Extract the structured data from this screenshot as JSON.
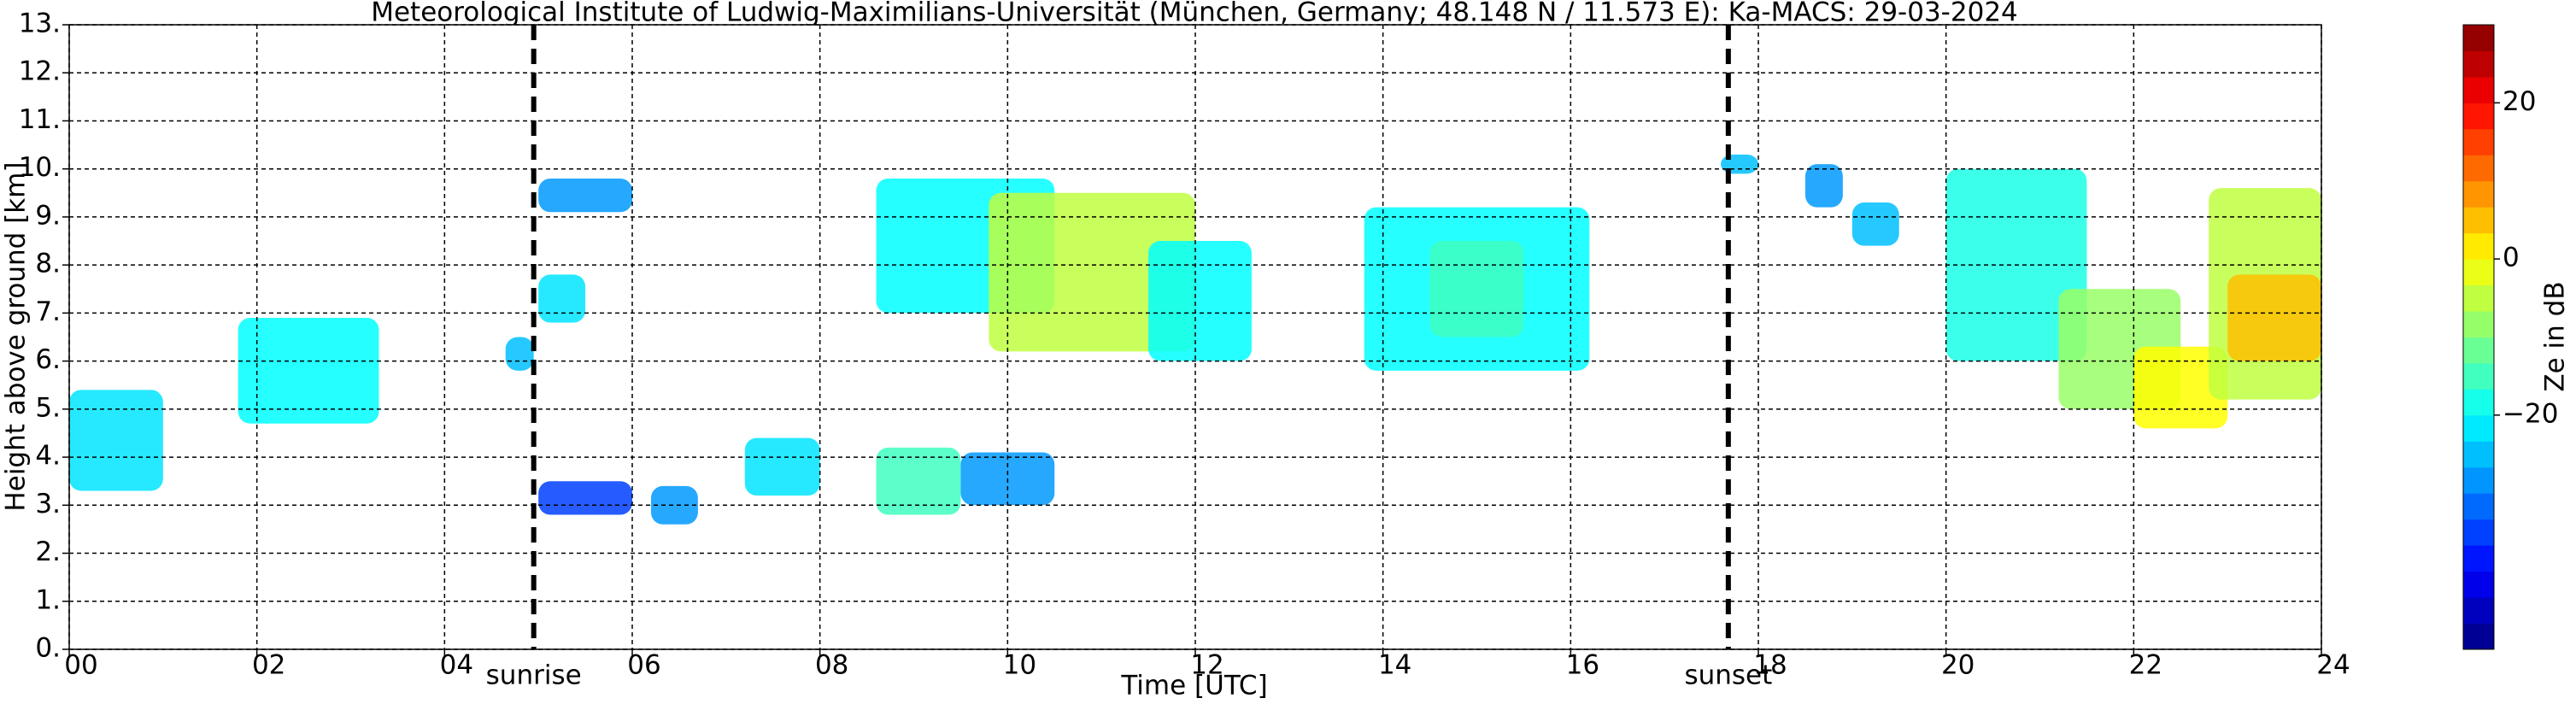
{
  "chart_data": {
    "type": "time-height",
    "title": "Meteorological Institute of Ludwig-Maximilians-Universität (München, Germany; 48.148 N / 11.573 E):    Ka-MACS: 29-03-2024",
    "xlabel": "Time [UTC]",
    "ylabel": "Height above ground [km]",
    "xlim": [
      0,
      24
    ],
    "xticks": [
      {
        "value": 0,
        "label": "00"
      },
      {
        "value": 2,
        "label": "02"
      },
      {
        "value": 4,
        "label": "04"
      },
      {
        "value": 6,
        "label": "06"
      },
      {
        "value": 8,
        "label": "08"
      },
      {
        "value": 10,
        "label": "10"
      },
      {
        "value": 12,
        "label": "12"
      },
      {
        "value": 14,
        "label": "14"
      },
      {
        "value": 16,
        "label": "16"
      },
      {
        "value": 18,
        "label": "18"
      },
      {
        "value": 20,
        "label": "20"
      },
      {
        "value": 22,
        "label": "22"
      },
      {
        "value": 24,
        "label": "24"
      }
    ],
    "ylim": [
      0,
      13
    ],
    "yticks": [
      {
        "value": 0,
        "label": "0."
      },
      {
        "value": 1,
        "label": "1."
      },
      {
        "value": 2,
        "label": "2."
      },
      {
        "value": 3,
        "label": "3."
      },
      {
        "value": 4,
        "label": "4."
      },
      {
        "value": 5,
        "label": "5."
      },
      {
        "value": 6,
        "label": "6."
      },
      {
        "value": 7,
        "label": "7."
      },
      {
        "value": 8,
        "label": "8."
      },
      {
        "value": 9,
        "label": "9."
      },
      {
        "value": 10,
        "label": "10."
      },
      {
        "value": 11,
        "label": "11."
      },
      {
        "value": 12,
        "label": "12."
      },
      {
        "value": 13,
        "label": "13."
      }
    ],
    "grid": true,
    "events": [
      {
        "label": "sunrise",
        "time": 4.95
      },
      {
        "label": "sunset",
        "time": 17.68
      }
    ],
    "colorbar": {
      "label": "Ze in dB",
      "colormap": "jet",
      "clim": [
        -50,
        30
      ],
      "ticks": [
        {
          "value": -20,
          "label": "−20"
        },
        0,
        20
      ]
    },
    "echoes": [
      {
        "t0": 0.0,
        "t1": 1.0,
        "h0": 3.3,
        "h1": 5.4,
        "ze": -22
      },
      {
        "t0": 1.8,
        "t1": 3.3,
        "h0": 4.7,
        "h1": 6.9,
        "ze": -20
      },
      {
        "t0": 4.65,
        "t1": 4.95,
        "h0": 5.8,
        "h1": 6.5,
        "ze": -25
      },
      {
        "t0": 5.0,
        "t1": 5.5,
        "h0": 6.8,
        "h1": 7.8,
        "ze": -22
      },
      {
        "t0": 5.0,
        "t1": 6.0,
        "h0": 9.1,
        "h1": 9.8,
        "ze": -28
      },
      {
        "t0": 5.0,
        "t1": 6.0,
        "h0": 2.8,
        "h1": 3.5,
        "ze": -35
      },
      {
        "t0": 6.2,
        "t1": 6.7,
        "h0": 2.6,
        "h1": 3.4,
        "ze": -28
      },
      {
        "t0": 7.2,
        "t1": 8.0,
        "h0": 3.2,
        "h1": 4.4,
        "ze": -22
      },
      {
        "t0": 8.6,
        "t1": 9.5,
        "h0": 2.8,
        "h1": 4.2,
        "ze": -15
      },
      {
        "t0": 9.5,
        "t1": 10.5,
        "h0": 3.0,
        "h1": 4.1,
        "ze": -28
      },
      {
        "t0": 8.6,
        "t1": 10.5,
        "h0": 7.0,
        "h1": 9.8,
        "ze": -20
      },
      {
        "t0": 9.8,
        "t1": 12.0,
        "h0": 6.2,
        "h1": 9.5,
        "ze": -5
      },
      {
        "t0": 11.5,
        "t1": 12.6,
        "h0": 6.0,
        "h1": 8.5,
        "ze": -20
      },
      {
        "t0": 13.8,
        "t1": 16.2,
        "h0": 5.8,
        "h1": 9.2,
        "ze": -20
      },
      {
        "t0": 14.5,
        "t1": 15.5,
        "h0": 6.5,
        "h1": 8.5,
        "ze": -15
      },
      {
        "t0": 17.6,
        "t1": 18.0,
        "h0": 9.9,
        "h1": 10.3,
        "ze": -25
      },
      {
        "t0": 18.5,
        "t1": 18.9,
        "h0": 9.2,
        "h1": 10.1,
        "ze": -28
      },
      {
        "t0": 19.0,
        "t1": 19.5,
        "h0": 8.4,
        "h1": 9.3,
        "ze": -25
      },
      {
        "t0": 20.0,
        "t1": 21.5,
        "h0": 6.0,
        "h1": 10.0,
        "ze": -18
      },
      {
        "t0": 21.2,
        "t1": 22.5,
        "h0": 5.0,
        "h1": 7.5,
        "ze": -8
      },
      {
        "t0": 22.0,
        "t1": 23.0,
        "h0": 4.6,
        "h1": 6.3,
        "ze": 0
      },
      {
        "t0": 22.8,
        "t1": 24.0,
        "h0": 5.2,
        "h1": 9.6,
        "ze": -5
      },
      {
        "t0": 23.0,
        "t1": 24.0,
        "h0": 6.0,
        "h1": 7.8,
        "ze": 5
      }
    ]
  }
}
